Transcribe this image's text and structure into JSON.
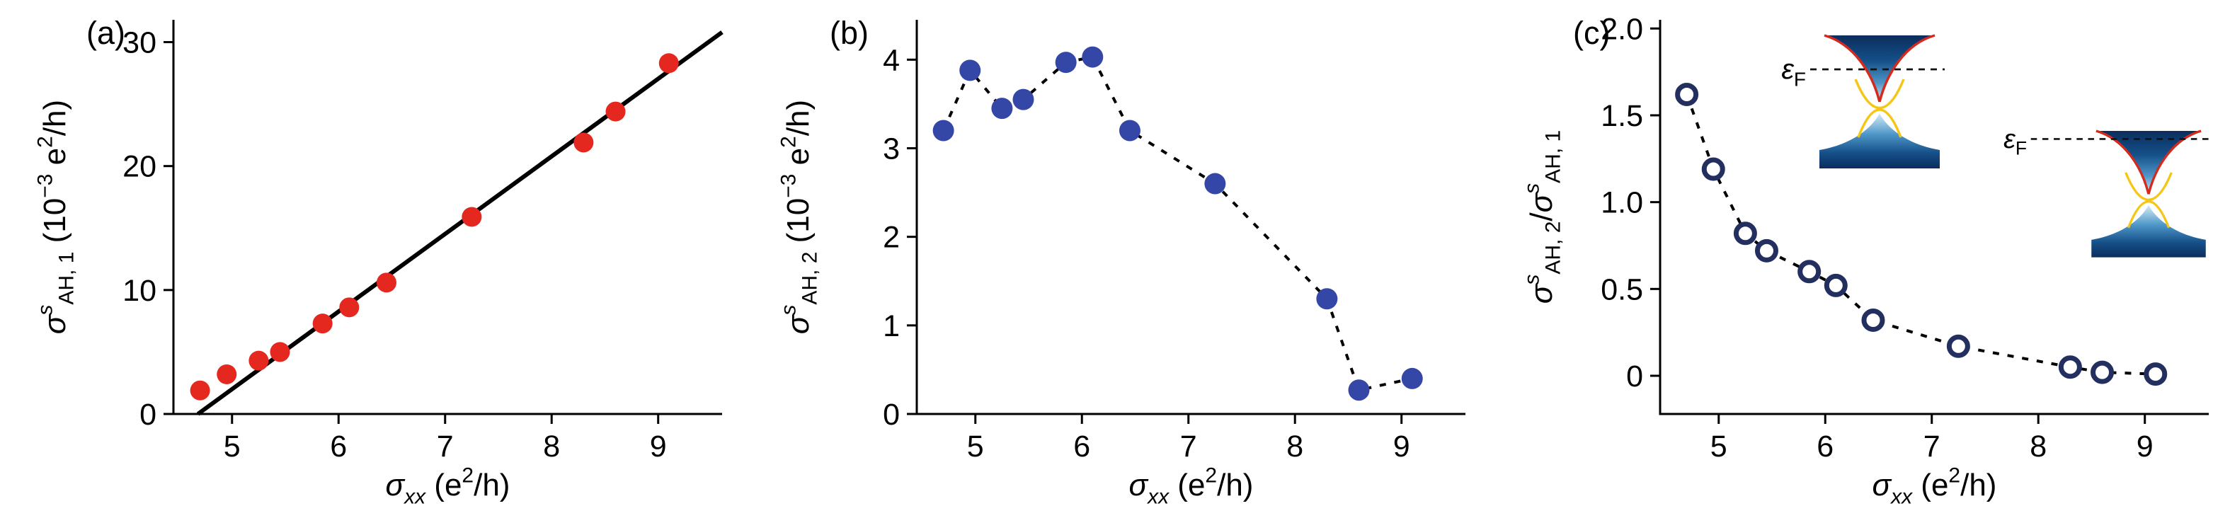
{
  "figure": {
    "panels": [
      {
        "label": "(a)"
      },
      {
        "label": "(b)"
      },
      {
        "label": "(c)"
      }
    ]
  },
  "colors": {
    "background": "#ffffff",
    "axis": "#000000",
    "panel_a_marker": "#e4271f",
    "panel_b_marker": "#3447a6",
    "panel_c_marker_ring": "#232f5f",
    "fit_line": "#000000",
    "connector_line": "#000000",
    "band_gradient": [
      "#0b2d5c",
      "#155089",
      "#4f97c8",
      "#d9eef8"
    ],
    "band_edge_red": "#d42a1e",
    "band_edge_yellow": "#f6c616",
    "fermi_line": "#111111"
  },
  "chart_data": [
    {
      "type": "scatter",
      "panel_label": "(a)",
      "x": [
        4.7,
        4.95,
        5.25,
        5.45,
        5.85,
        6.1,
        6.45,
        7.25,
        8.3,
        8.6,
        9.1
      ],
      "y": [
        1.9,
        3.2,
        4.3,
        5.0,
        7.3,
        8.6,
        10.6,
        15.9,
        21.9,
        24.4,
        28.3
      ],
      "xlim": [
        4.45,
        9.6
      ],
      "ylim": [
        0,
        31.8
      ],
      "xticks": [
        5,
        6,
        7,
        8,
        9
      ],
      "yticks": [
        0,
        10,
        20,
        30
      ],
      "xtick_labels": [
        "5",
        "6",
        "7",
        "8",
        "9"
      ],
      "ytick_labels": [
        "0",
        "10",
        "20",
        "30"
      ],
      "marker": {
        "shape": "filled-circle",
        "r": 14,
        "fill": "#e4271f"
      },
      "line": {
        "kind": "fit",
        "x1": 4.68,
        "y1": 0,
        "x2": 9.6,
        "y2": 30.8,
        "width": 6,
        "color": "#000000"
      },
      "xlabel_rich": [
        {
          "t": "σ",
          "i": true
        },
        {
          "t": "xx",
          "pos": "sub",
          "i": true
        },
        {
          "t": " (e"
        },
        {
          "t": "2",
          "pos": "sup"
        },
        {
          "t": "/h)"
        }
      ],
      "ylabel_rich": [
        {
          "t": "σ",
          "i": true
        },
        {
          "t": "s",
          "pos": "sup",
          "i": true
        },
        {
          "t": "AH, 1",
          "pos": "sub"
        },
        {
          "t": " (10"
        },
        {
          "t": "−3",
          "pos": "sup"
        },
        {
          "t": " e"
        },
        {
          "t": "2",
          "pos": "sup"
        },
        {
          "t": "/h)"
        }
      ]
    },
    {
      "type": "scatter",
      "panel_label": "(b)",
      "x": [
        4.7,
        4.95,
        5.25,
        5.45,
        5.85,
        6.1,
        6.45,
        7.25,
        8.3,
        8.6,
        9.1
      ],
      "y": [
        3.2,
        3.88,
        3.45,
        3.55,
        3.97,
        4.03,
        3.2,
        2.6,
        1.3,
        0.27,
        0.4
      ],
      "xlim": [
        4.45,
        9.6
      ],
      "ylim": [
        0,
        4.45
      ],
      "xticks": [
        5,
        6,
        7,
        8,
        9
      ],
      "yticks": [
        0,
        1,
        2,
        3,
        4
      ],
      "xtick_labels": [
        "5",
        "6",
        "7",
        "8",
        "9"
      ],
      "ytick_labels": [
        "0",
        "1",
        "2",
        "3",
        "4"
      ],
      "marker": {
        "shape": "filled-circle",
        "r": 15,
        "fill": "#3447a6"
      },
      "line": {
        "kind": "connect",
        "dash": "9 12",
        "width": 4,
        "color": "#000000"
      },
      "xlabel_rich": [
        {
          "t": "σ",
          "i": true
        },
        {
          "t": "xx",
          "pos": "sub",
          "i": true
        },
        {
          "t": " (e"
        },
        {
          "t": "2",
          "pos": "sup"
        },
        {
          "t": "/h)"
        }
      ],
      "ylabel_rich": [
        {
          "t": "σ",
          "i": true
        },
        {
          "t": "s",
          "pos": "sup",
          "i": true
        },
        {
          "t": "AH, 2",
          "pos": "sub"
        },
        {
          "t": " (10"
        },
        {
          "t": "−3",
          "pos": "sup"
        },
        {
          "t": " e"
        },
        {
          "t": "2",
          "pos": "sup"
        },
        {
          "t": "/h)"
        }
      ]
    },
    {
      "type": "scatter",
      "panel_label": "(c)",
      "x": [
        4.7,
        4.95,
        5.25,
        5.45,
        5.85,
        6.1,
        6.45,
        7.25,
        8.3,
        8.6,
        9.1
      ],
      "y": [
        1.62,
        1.19,
        0.82,
        0.72,
        0.6,
        0.52,
        0.32,
        0.17,
        0.05,
        0.02,
        0.01
      ],
      "xlim": [
        4.45,
        9.6
      ],
      "ylim": [
        -0.22,
        2.05
      ],
      "xticks": [
        5,
        6,
        7,
        8,
        9
      ],
      "yticks": [
        0,
        0.5,
        1,
        1.5,
        2
      ],
      "xtick_labels": [
        "5",
        "6",
        "7",
        "8",
        "9"
      ],
      "ytick_labels": [
        "0",
        "0.5",
        "1.0",
        "1.5",
        "2.0"
      ],
      "marker": {
        "shape": "open-circle",
        "r": 13,
        "stroke": "#232f5f",
        "stroke_width": 7
      },
      "line": {
        "kind": "connect",
        "dash": "9 12",
        "width": 4,
        "color": "#000000"
      },
      "xlabel_rich": [
        {
          "t": "σ",
          "i": true
        },
        {
          "t": "xx",
          "pos": "sub",
          "i": true
        },
        {
          "t": " (e"
        },
        {
          "t": "2",
          "pos": "sup"
        },
        {
          "t": "/h)"
        }
      ],
      "ylabel_rich": [
        {
          "t": "σ",
          "i": true
        },
        {
          "t": "s",
          "pos": "sup",
          "i": true
        },
        {
          "t": "AH, 2",
          "pos": "sub"
        },
        {
          "t": "/"
        },
        {
          "t": "σ",
          "i": true
        },
        {
          "t": "s",
          "pos": "sup",
          "i": true
        },
        {
          "t": "AH, 1",
          "pos": "sub"
        }
      ],
      "fermi_label_rich": [
        {
          "t": "ε",
          "i": true
        },
        {
          "t": "F",
          "pos": "sub"
        }
      ],
      "insets": [
        {
          "cx": 555,
          "cy": 150,
          "scale": 1.0,
          "fermi": {
            "x1": -98,
            "x2": 92,
            "y": -52
          }
        },
        {
          "cx": 935,
          "cy": 280,
          "scale": 0.95,
          "fermi": {
            "x1": -175,
            "x2": 90,
            "y": -88
          }
        }
      ]
    }
  ]
}
